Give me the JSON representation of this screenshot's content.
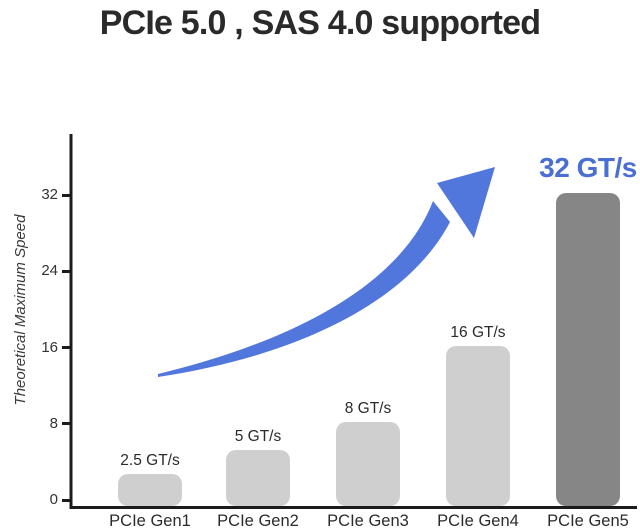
{
  "title": "PCIe 5.0 , SAS 4.0 supported",
  "colors": {
    "bar_light": "#cfcfcf",
    "bar_dark": "#868686",
    "arrow_blue": "#5277dc",
    "annotation_blue": "#4a6ed3",
    "axis": "#1b1b1b"
  },
  "chart_data": {
    "type": "bar",
    "title": "PCIe 5.0 , SAS 4.0 supported",
    "xlabel": "",
    "ylabel": "Theoretical Maximum Speed",
    "ylim": [
      0,
      38
    ],
    "yticks": [
      0,
      8,
      16,
      24,
      32
    ],
    "grid": false,
    "legend": false,
    "categories": [
      "PCIe Gen1",
      "PCIe Gen2",
      "PCIe Gen3",
      "PCIe Gen4",
      "PCIe Gen5"
    ],
    "values": [
      2.5,
      5,
      8,
      16,
      32
    ],
    "value_labels": [
      "2.5 GT/s",
      "5 GT/s",
      "8 GT/s",
      "16 GT/s",
      "32 GT/s"
    ],
    "highlight_index": 4,
    "annotations": [
      {
        "type": "text",
        "text": "32 GT/s",
        "target": "PCIe Gen5"
      },
      {
        "type": "arrow",
        "description": "curved upward trend arrow from Gen1 toward Gen5 value"
      }
    ]
  }
}
